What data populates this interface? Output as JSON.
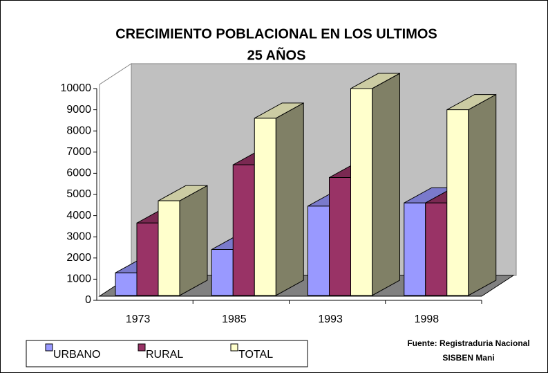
{
  "chart_data": {
    "type": "bar3d",
    "title": "CRECIMIENTO POBLACIONAL EN LOS ULTIMOS",
    "subtitle": "25 AÑOS",
    "categories": [
      "1973",
      "1985",
      "1993",
      "1998"
    ],
    "series": [
      {
        "name": "URBANO",
        "color": "#9999ff",
        "values": [
          1300,
          2400,
          4450,
          4600
        ]
      },
      {
        "name": "RURAL",
        "color": "#993366",
        "values": [
          3650,
          6400,
          5800,
          4600
        ]
      },
      {
        "name": "TOTAL",
        "color": "#ffffcc",
        "values": [
          4700,
          8600,
          10000,
          9000
        ]
      }
    ],
    "ylim": [
      0,
      10000
    ],
    "yticks": [
      0,
      1000,
      2000,
      3000,
      4000,
      5000,
      6000,
      7000,
      8000,
      9000,
      10000
    ],
    "legend": "bottom-left",
    "source": [
      "Fuente: Registraduria Nacional",
      "SISBEN Mani"
    ]
  }
}
